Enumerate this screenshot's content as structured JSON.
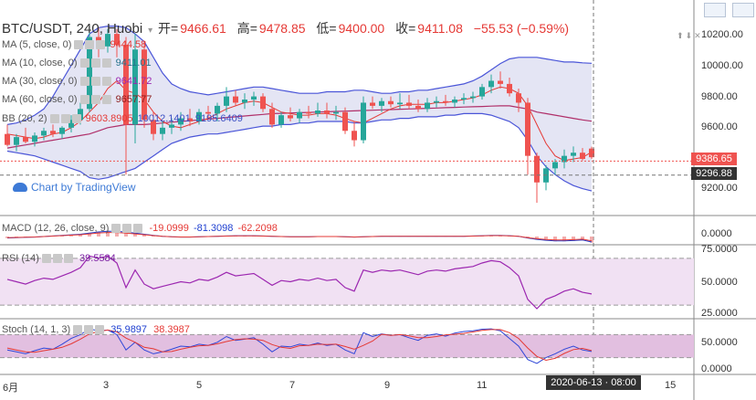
{
  "header": {
    "symbol": "BTC/USDT, 240, Huobi",
    "open_label": "开=",
    "open": "9466.61",
    "high_label": "高=",
    "high": "9478.85",
    "low_label": "低=",
    "low": "9400.00",
    "close_label": "收=",
    "close": "9411.08",
    "change": "−55.53 (−0.59%)"
  },
  "indicators": [
    {
      "name": "MA (5, close, 0)",
      "value": "9444.58",
      "color": "#e53935"
    },
    {
      "name": "MA (10, close, 0)",
      "value": "9411.01",
      "color": "#26738c"
    },
    {
      "name": "MA (30, close, 0)",
      "value": "9641.72",
      "color": "#9c27b0"
    },
    {
      "name": "MA (60, close, 0)",
      "value": "9657.77",
      "color": "#8b1a1a"
    }
  ],
  "bb": {
    "name": "BB (20, 2)",
    "v1": "9603.8905",
    "v2": "10012.1401",
    "v3": "9195.6409"
  },
  "macd": {
    "name": "MACD (12, 26, close, 9)",
    "v1": "-19.0999",
    "v2": "-81.3098",
    "v3": "-62.2098"
  },
  "rsi": {
    "name": "RSI (14)",
    "value": "39.5584"
  },
  "stoch": {
    "name": "Stoch (14, 1, 3)",
    "v1": "35.9897",
    "v2": "38.3987"
  },
  "price_axis": [
    "10200.00",
    "10000.00",
    "9800.00",
    "9600.00",
    "9200.00"
  ],
  "current_price": "9386.65",
  "crosshair_price": "9296.88",
  "macd_axis": [
    "0.0000"
  ],
  "rsi_axis": [
    "75.0000",
    "50.0000",
    "25.0000"
  ],
  "stoch_axis": [
    "50.0000",
    "0.0000"
  ],
  "x_axis": [
    "6月",
    "3",
    "5",
    "7",
    "9",
    "11",
    "15"
  ],
  "crosshair_date": "2020-06-13 · 08:00",
  "watermark": "Chart by TradingView",
  "colors": {
    "up": "#26a69a",
    "down": "#ef5350",
    "bb_fill": "#d9daf0",
    "bb_line": "#4a55d8"
  },
  "chart_data": {
    "type": "candlestick",
    "title": "BTC/USDT, 240, Huobi",
    "ylim": [
      9050,
      10300
    ],
    "candles": [
      [
        9560,
        9620,
        9480,
        9490
      ],
      [
        9490,
        9560,
        9450,
        9540
      ],
      [
        9540,
        9600,
        9500,
        9510
      ],
      [
        9510,
        9570,
        9480,
        9550
      ],
      [
        9550,
        9600,
        9520,
        9580
      ],
      [
        9580,
        9620,
        9540,
        9560
      ],
      [
        9560,
        9610,
        9530,
        9600
      ],
      [
        9600,
        9680,
        9570,
        9650
      ],
      [
        9650,
        9760,
        9620,
        9720
      ],
      [
        9720,
        10250,
        9700,
        10180
      ],
      [
        10180,
        10240,
        10050,
        10120
      ],
      [
        10120,
        10230,
        10080,
        10200
      ],
      [
        10200,
        10230,
        10050,
        10130
      ],
      [
        10130,
        10180,
        9300,
        9620
      ],
      [
        9620,
        10200,
        9500,
        10100
      ],
      [
        10100,
        10150,
        9600,
        9650
      ],
      [
        9650,
        9700,
        9520,
        9560
      ],
      [
        9560,
        9640,
        9520,
        9600
      ],
      [
        9600,
        9660,
        9560,
        9620
      ],
      [
        9620,
        9700,
        9580,
        9660
      ],
      [
        9660,
        9720,
        9610,
        9640
      ],
      [
        9640,
        9720,
        9620,
        9700
      ],
      [
        9700,
        9740,
        9660,
        9690
      ],
      [
        9690,
        9760,
        9640,
        9740
      ],
      [
        9740,
        9860,
        9700,
        9800
      ],
      [
        9800,
        9840,
        9740,
        9760
      ],
      [
        9760,
        9820,
        9720,
        9780
      ],
      [
        9780,
        9830,
        9740,
        9800
      ],
      [
        9800,
        9820,
        9700,
        9720
      ],
      [
        9720,
        9760,
        9600,
        9620
      ],
      [
        9620,
        9700,
        9600,
        9680
      ],
      [
        9680,
        9730,
        9640,
        9660
      ],
      [
        9660,
        9720,
        9630,
        9700
      ],
      [
        9700,
        9740,
        9660,
        9690
      ],
      [
        9690,
        9760,
        9670,
        9710
      ],
      [
        9710,
        9760,
        9660,
        9690
      ],
      [
        9690,
        9740,
        9650,
        9700
      ],
      [
        9700,
        9730,
        9560,
        9580
      ],
      [
        9580,
        9640,
        9480,
        9520
      ],
      [
        9520,
        9800,
        9500,
        9760
      ],
      [
        9760,
        9800,
        9720,
        9740
      ],
      [
        9740,
        9790,
        9700,
        9770
      ],
      [
        9770,
        9800,
        9730,
        9750
      ],
      [
        9750,
        9820,
        9720,
        9760
      ],
      [
        9760,
        9810,
        9720,
        9740
      ],
      [
        9740,
        9780,
        9700,
        9720
      ],
      [
        9720,
        9790,
        9700,
        9760
      ],
      [
        9760,
        9800,
        9730,
        9770
      ],
      [
        9770,
        9810,
        9740,
        9760
      ],
      [
        9760,
        9800,
        9730,
        9780
      ],
      [
        9780,
        9820,
        9750,
        9790
      ],
      [
        9790,
        9830,
        9760,
        9800
      ],
      [
        9800,
        9880,
        9780,
        9860
      ],
      [
        9860,
        9940,
        9820,
        9900
      ],
      [
        9900,
        9960,
        9850,
        9880
      ],
      [
        9880,
        9920,
        9800,
        9820
      ],
      [
        9820,
        9850,
        9700,
        9760
      ],
      [
        9760,
        9790,
        9300,
        9420
      ],
      [
        9420,
        9440,
        9120,
        9250
      ],
      [
        9250,
        9360,
        9200,
        9340
      ],
      [
        9340,
        9400,
        9300,
        9380
      ],
      [
        9380,
        9460,
        9340,
        9420
      ],
      [
        9420,
        9480,
        9380,
        9440
      ],
      [
        9440,
        9470,
        9390,
        9400
      ],
      [
        9466.61,
        9478.85,
        9400,
        9411.08
      ]
    ],
    "ma5": [
      9560,
      9550,
      9540,
      9530,
      9540,
      9560,
      9570,
      9600,
      9640,
      9700,
      9760,
      9850,
      9900,
      9840,
      9820,
      9780,
      9700,
      9640,
      9610,
      9600,
      9620,
      9640,
      9660,
      9690,
      9720,
      9740,
      9760,
      9770,
      9760,
      9730,
      9700,
      9690,
      9680,
      9680,
      9690,
      9690,
      9680,
      9660,
      9640,
      9630,
      9660,
      9690,
      9720,
      9740,
      9750,
      9750,
      9750,
      9760,
      9760,
      9770,
      9780,
      9790,
      9810,
      9840,
      9860,
      9850,
      9820,
      9740,
      9620,
      9500,
      9420,
      9390,
      9400,
      9410,
      9444.58
    ],
    "ma30": [
      9470,
      9480,
      9490,
      9500,
      9510,
      9520,
      9530,
      9540,
      9550,
      9560,
      9580,
      9600,
      9610,
      9620,
      9620,
      9620,
      9625,
      9630,
      9635,
      9640,
      9645,
      9650,
      9655,
      9660,
      9665,
      9670,
      9675,
      9680,
      9685,
      9690,
      9692,
      9694,
      9696,
      9698,
      9700,
      9702,
      9704,
      9706,
      9708,
      9710,
      9712,
      9714,
      9716,
      9718,
      9720,
      9722,
      9724,
      9726,
      9728,
      9730,
      9732,
      9734,
      9736,
      9738,
      9740,
      9740,
      9730,
      9720,
      9700,
      9690,
      9680,
      9670,
      9660,
      9650,
      9641.72
    ],
    "bb_upper": [
      9620,
      9630,
      9650,
      9680,
      9720,
      9800,
      9900,
      10000,
      10100,
      10200,
      10240,
      10250,
      10250,
      10240,
      10200,
      10150,
      10050,
      9950,
      9880,
      9850,
      9830,
      9820,
      9810,
      9820,
      9830,
      9840,
      9850,
      9860,
      9860,
      9850,
      9840,
      9830,
      9820,
      9820,
      9820,
      9830,
      9830,
      9830,
      9840,
      9840,
      9830,
      9820,
      9820,
      9830,
      9830,
      9840,
      9840,
      9850,
      9860,
      9870,
      9880,
      9900,
      9930,
      9970,
      10010,
      10040,
      10050,
      10050,
      10050,
      10040,
      10030,
      10020,
      10020,
      10015,
      10012.14
    ],
    "bb_lower": [
      9450,
      9440,
      9430,
      9420,
      9400,
      9380,
      9360,
      9340,
      9320,
      9280,
      9270,
      9280,
      9300,
      9320,
      9340,
      9380,
      9420,
      9460,
      9500,
      9520,
      9540,
      9550,
      9560,
      9560,
      9570,
      9580,
      9590,
      9600,
      9610,
      9610,
      9620,
      9620,
      9630,
      9630,
      9640,
      9640,
      9640,
      9640,
      9630,
      9630,
      9640,
      9650,
      9650,
      9660,
      9660,
      9670,
      9670,
      9670,
      9680,
      9680,
      9690,
      9690,
      9690,
      9680,
      9660,
      9640,
      9600,
      9520,
      9420,
      9350,
      9300,
      9260,
      9230,
      9210,
      9195.64
    ],
    "macd_hist": [
      -5,
      -4,
      -3,
      -2,
      0,
      2,
      4,
      6,
      8,
      12,
      16,
      18,
      18,
      15,
      12,
      8,
      4,
      1,
      -1,
      -2,
      -2,
      -1,
      0,
      1,
      2,
      3,
      3,
      3,
      2,
      1,
      0,
      -1,
      -1,
      -1,
      0,
      0,
      0,
      -1,
      -2,
      -1,
      0,
      1,
      1,
      1,
      1,
      1,
      1,
      1,
      1,
      1,
      1,
      2,
      3,
      4,
      4,
      3,
      1,
      -5,
      -10,
      -13,
      -15,
      -15,
      -14,
      -12,
      -19.1
    ],
    "rsi": [
      52,
      50,
      48,
      51,
      53,
      52,
      55,
      58,
      62,
      72,
      70,
      72,
      66,
      45,
      60,
      48,
      44,
      46,
      48,
      50,
      49,
      52,
      51,
      54,
      58,
      55,
      56,
      57,
      52,
      47,
      51,
      50,
      52,
      51,
      53,
      51,
      52,
      45,
      42,
      60,
      58,
      60,
      59,
      60,
      58,
      56,
      59,
      60,
      59,
      61,
      62,
      63,
      66,
      68,
      67,
      62,
      55,
      35,
      27,
      35,
      38,
      42,
      44,
      41,
      39.56
    ],
    "stoch_k": [
      40,
      35,
      30,
      38,
      45,
      42,
      55,
      70,
      80,
      95,
      90,
      92,
      80,
      40,
      60,
      40,
      30,
      35,
      42,
      50,
      48,
      55,
      52,
      60,
      75,
      65,
      68,
      72,
      55,
      35,
      50,
      48,
      55,
      52,
      58,
      52,
      55,
      40,
      30,
      85,
      75,
      82,
      78,
      80,
      72,
      65,
      78,
      82,
      76,
      84,
      88,
      90,
      94,
      95,
      90,
      70,
      50,
      15,
      5,
      20,
      30,
      42,
      50,
      40,
      35.99
    ],
    "stoch_d": [
      45,
      40,
      35,
      34,
      38,
      42,
      47,
      56,
      68,
      82,
      88,
      92,
      87,
      71,
      60,
      47,
      43,
      35,
      36,
      42,
      47,
      51,
      52,
      56,
      62,
      67,
      69,
      68,
      65,
      54,
      47,
      44,
      51,
      52,
      55,
      54,
      55,
      49,
      42,
      52,
      63,
      81,
      78,
      80,
      77,
      72,
      72,
      75,
      79,
      81,
      83,
      87,
      91,
      93,
      93,
      85,
      70,
      45,
      23,
      13,
      18,
      31,
      41,
      44,
      38.4
    ]
  }
}
